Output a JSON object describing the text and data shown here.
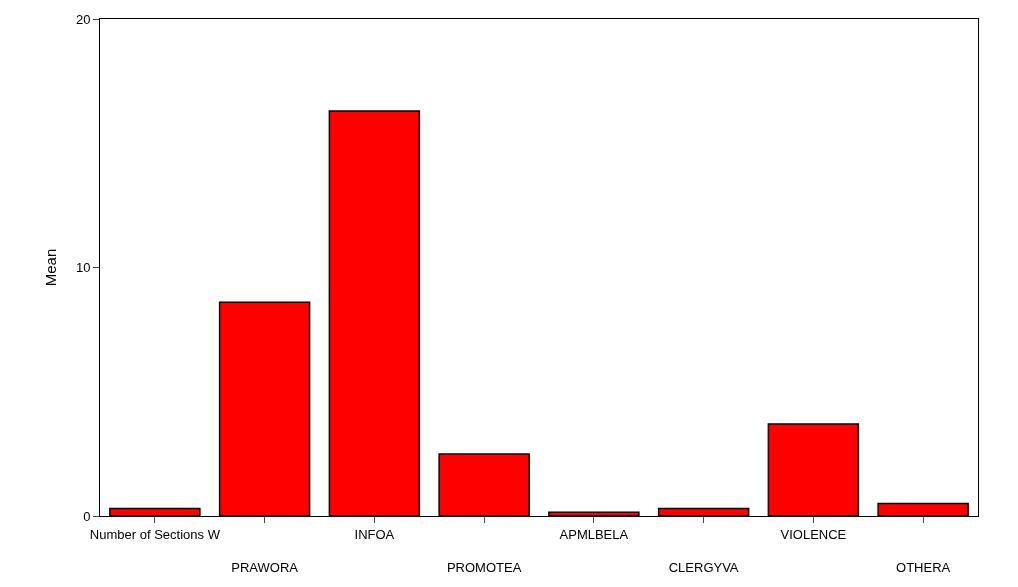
{
  "chart_data": {
    "type": "bar",
    "ylabel": "Mean",
    "categories": [
      "Number of Sections W",
      "PRAWORA",
      "INFOA",
      "PROMOTEA",
      "APMLBELA",
      "CLERGYVA",
      "VIOLENCE",
      "OTHERA"
    ],
    "values": [
      0.3,
      8.6,
      16.3,
      2.5,
      0.15,
      0.3,
      3.7,
      0.5
    ],
    "color": "#ff0000",
    "ylim": [
      0,
      20
    ],
    "yticks": [
      0,
      10,
      20
    ]
  }
}
